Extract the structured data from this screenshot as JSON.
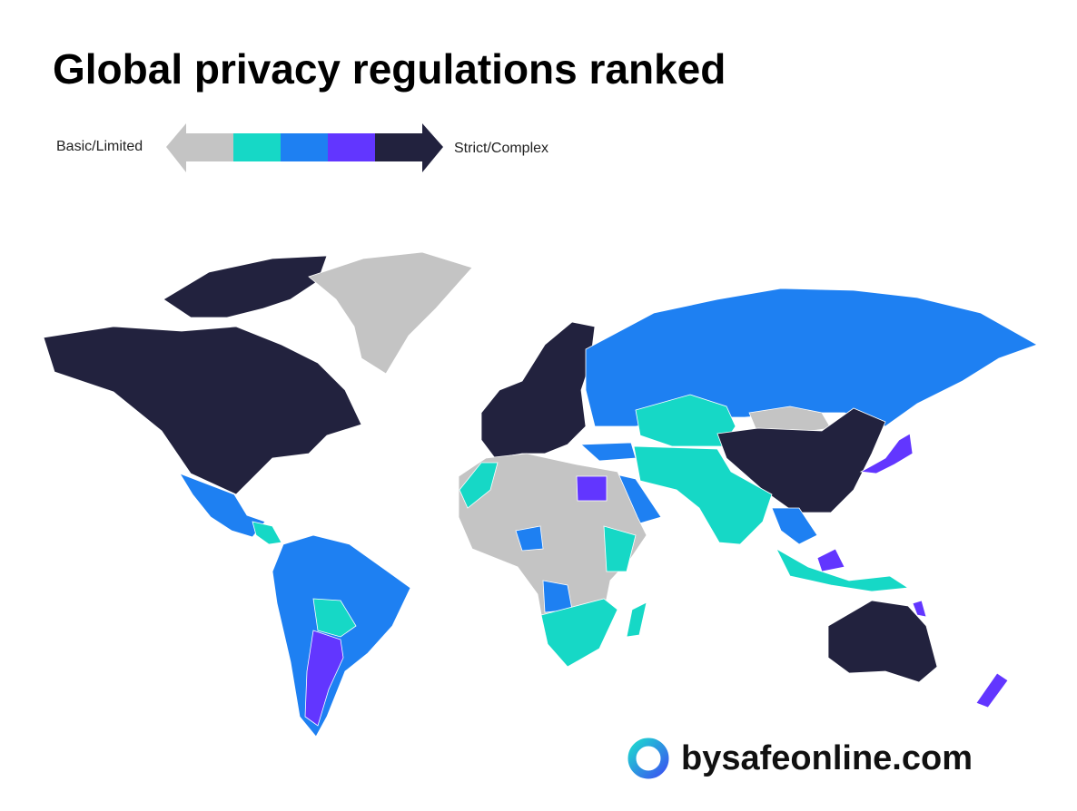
{
  "title": "Global privacy regulations ranked",
  "legend": {
    "min_label": "Basic/Limited",
    "max_label": "Strict/Complex",
    "colors": [
      "#c4c4c4",
      "#16d8c6",
      "#1e80f2",
      "#6236ff",
      "#22223e"
    ]
  },
  "brand": "bysafeonline.com"
}
